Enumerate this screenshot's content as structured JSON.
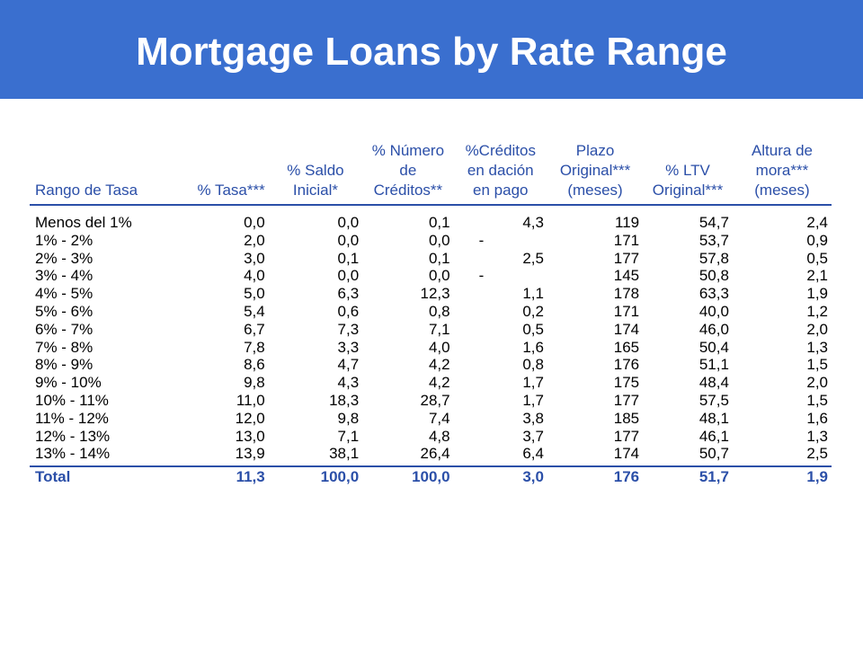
{
  "slide": {
    "title": "Mortgage Loans by Rate Range"
  },
  "table": {
    "headers": [
      [
        "Rango de Tasa"
      ],
      [
        "% Tasa***"
      ],
      [
        "% Saldo",
        "Inicial*"
      ],
      [
        "% Número",
        "de",
        "Créditos**"
      ],
      [
        "%Créditos",
        "en dación",
        "en pago"
      ],
      [
        "Plazo",
        "Original***",
        "(meses)"
      ],
      [
        "% LTV",
        "Original***"
      ],
      [
        "Altura de",
        "mora***",
        "(meses)"
      ]
    ],
    "rows": [
      [
        "Menos del 1%",
        "0,0",
        "0,0",
        "0,1",
        "4,3",
        "119",
        "54,7",
        "2,4"
      ],
      [
        "1% - 2%",
        "2,0",
        "0,0",
        "0,0",
        "-",
        "171",
        "53,7",
        "0,9"
      ],
      [
        "2% - 3%",
        "3,0",
        "0,1",
        "0,1",
        "2,5",
        "177",
        "57,8",
        "0,5"
      ],
      [
        "3% - 4%",
        "4,0",
        "0,0",
        "0,0",
        "-",
        "145",
        "50,8",
        "2,1"
      ],
      [
        "4% - 5%",
        "5,0",
        "6,3",
        "12,3",
        "1,1",
        "178",
        "63,3",
        "1,9"
      ],
      [
        "5% - 6%",
        "5,4",
        "0,6",
        "0,8",
        "0,2",
        "171",
        "40,0",
        "1,2"
      ],
      [
        "6% - 7%",
        "6,7",
        "7,3",
        "7,1",
        "0,5",
        "174",
        "46,0",
        "2,0"
      ],
      [
        "7% - 8%",
        "7,8",
        "3,3",
        "4,0",
        "1,6",
        "165",
        "50,4",
        "1,3"
      ],
      [
        "8% - 9%",
        "8,6",
        "4,7",
        "4,2",
        "0,8",
        "176",
        "51,1",
        "1,5"
      ],
      [
        "9% - 10%",
        "9,8",
        "4,3",
        "4,2",
        "1,7",
        "175",
        "48,4",
        "2,0"
      ],
      [
        "10% - 11%",
        "11,0",
        "18,3",
        "28,7",
        "1,7",
        "177",
        "57,5",
        "1,5"
      ],
      [
        "11% - 12%",
        "12,0",
        "9,8",
        "7,4",
        "3,8",
        "185",
        "48,1",
        "1,6"
      ],
      [
        "12% - 13%",
        "13,0",
        "7,1",
        "4,8",
        "3,7",
        "177",
        "46,1",
        "1,3"
      ],
      [
        "13% - 14%",
        "13,9",
        "38,1",
        "26,4",
        "6,4",
        "174",
        "50,7",
        "2,5"
      ]
    ],
    "total": [
      "Total",
      "11,3",
      "100,0",
      "100,0",
      "3,0",
      "176",
      "51,7",
      "1,9"
    ]
  },
  "colors": {
    "title_bar": "#3a6fcf",
    "title_text": "#ffffff",
    "header_text": "#2b4fa8",
    "rule": "#2b4fa8",
    "body_text": "#000000"
  }
}
